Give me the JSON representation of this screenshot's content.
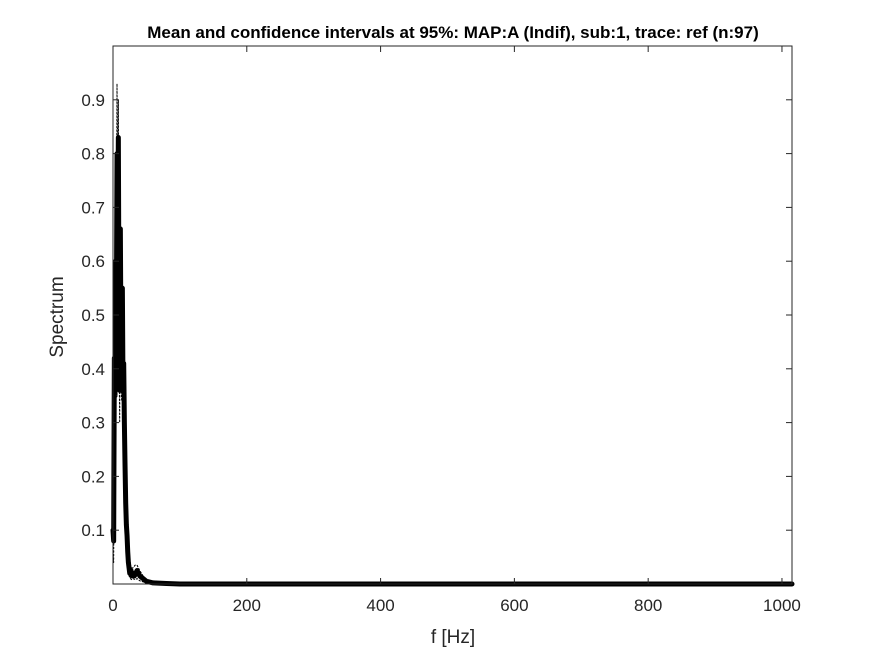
{
  "chart_data": {
    "type": "line",
    "title": "Mean and confidence intervals at 95%: MAP:A (Indif), sub:1, trace: ref (n:97)",
    "xlabel": "f [Hz]",
    "ylabel": "Spectrum",
    "xlim": [
      0,
      1015
    ],
    "ylim": [
      0,
      1.0
    ],
    "xticks": [
      0,
      200,
      400,
      600,
      800,
      1000
    ],
    "xtick_labels": [
      "0",
      "200",
      "400",
      "600",
      "800",
      "1000"
    ],
    "yticks": [
      0.1,
      0.2,
      0.3,
      0.4,
      0.5,
      0.6,
      0.7,
      0.8,
      0.9
    ],
    "ytick_labels": [
      "0.1",
      "0.2",
      "0.3",
      "0.4",
      "0.5",
      "0.6",
      "0.7",
      "0.8",
      "0.9"
    ],
    "grid": false,
    "legend": "none",
    "colors": {
      "mean": "#000000",
      "ci": "#000000",
      "axes": "#262626"
    },
    "series": [
      {
        "role": "mean",
        "style": "solid-thick",
        "x": [
          0,
          1,
          2,
          3,
          4,
          5,
          6,
          7,
          8,
          9,
          10,
          11,
          12,
          13,
          14,
          15,
          16,
          17,
          18,
          19,
          20,
          21,
          22,
          23,
          24,
          25,
          26,
          27,
          28,
          30,
          32,
          34,
          36,
          38,
          40,
          45,
          50,
          60,
          80,
          100,
          150,
          200,
          300,
          400,
          500,
          600,
          700,
          800,
          900,
          1015
        ],
        "y": [
          0.1,
          0.08,
          0.42,
          0.35,
          0.6,
          0.48,
          0.8,
          0.62,
          0.83,
          0.5,
          0.36,
          0.66,
          0.42,
          0.4,
          0.55,
          0.36,
          0.41,
          0.3,
          0.22,
          0.15,
          0.11,
          0.09,
          0.06,
          0.04,
          0.03,
          0.02,
          0.02,
          0.025,
          0.015,
          0.02,
          0.015,
          0.02,
          0.025,
          0.02,
          0.015,
          0.01,
          0.005,
          0.002,
          0.001,
          0.0,
          0.0,
          0.0,
          0.0,
          0.0,
          0.0,
          0.0,
          0.0,
          0.0,
          0.0,
          0.0
        ]
      },
      {
        "role": "upper-ci",
        "style": "dotted",
        "x": [
          0,
          1,
          2,
          3,
          4,
          5,
          6,
          7,
          8,
          9,
          10,
          11,
          12,
          13,
          14,
          15,
          16,
          18,
          20,
          22,
          24,
          26,
          28,
          30,
          33,
          36,
          40,
          45,
          50,
          60,
          80,
          100,
          200,
          400,
          600,
          800,
          1015
        ],
        "y": [
          0.15,
          0.12,
          0.5,
          0.42,
          0.7,
          0.58,
          0.93,
          0.72,
          0.9,
          0.58,
          0.42,
          0.72,
          0.48,
          0.46,
          0.6,
          0.42,
          0.46,
          0.28,
          0.15,
          0.09,
          0.05,
          0.035,
          0.03,
          0.03,
          0.035,
          0.035,
          0.025,
          0.015,
          0.008,
          0.003,
          0.001,
          0.0,
          0.0,
          0.0,
          0.0,
          0.0,
          0.0
        ]
      },
      {
        "role": "lower-ci",
        "style": "dotted",
        "x": [
          0,
          1,
          2,
          3,
          4,
          5,
          6,
          7,
          8,
          9,
          10,
          11,
          12,
          13,
          14,
          15,
          16,
          18,
          20,
          22,
          24,
          26,
          28,
          30,
          33,
          36,
          40,
          45,
          50,
          60,
          80,
          100,
          200,
          400,
          600,
          800,
          1015
        ],
        "y": [
          0.06,
          0.04,
          0.33,
          0.28,
          0.5,
          0.38,
          0.68,
          0.52,
          0.74,
          0.42,
          0.3,
          0.58,
          0.36,
          0.34,
          0.48,
          0.3,
          0.35,
          0.16,
          0.07,
          0.03,
          0.015,
          0.01,
          0.008,
          0.01,
          0.008,
          0.01,
          0.006,
          0.004,
          0.002,
          0.001,
          0.0,
          0.0,
          0.0,
          0.0,
          0.0,
          0.0,
          0.0
        ]
      }
    ]
  }
}
